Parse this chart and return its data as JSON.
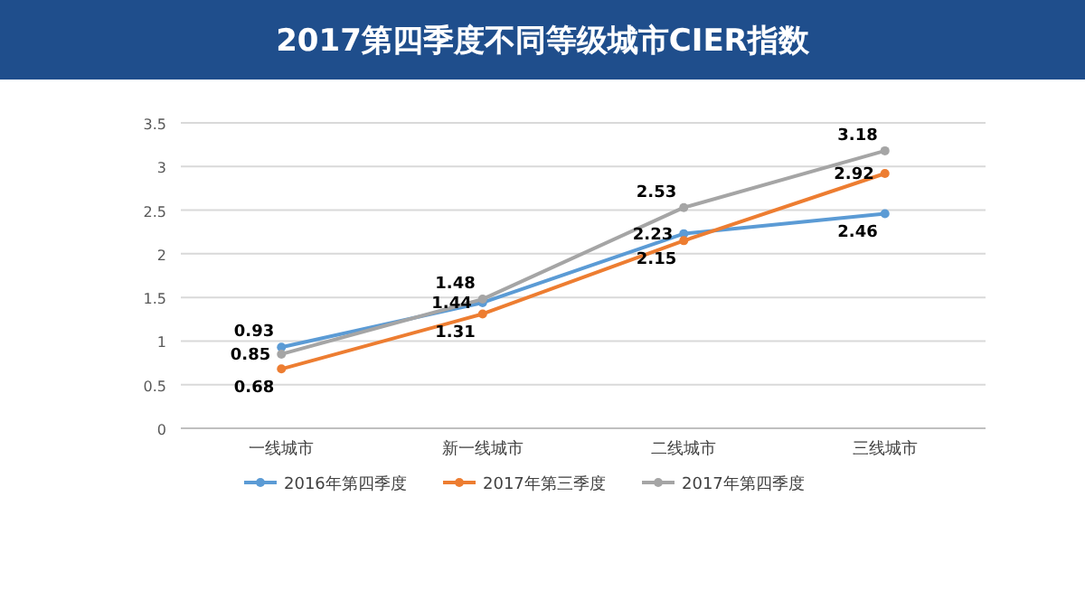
{
  "chart_data": {
    "type": "line",
    "title": "2017第四季度不同等级城市CIER指数",
    "categories": [
      "一线城市",
      "新一线城市",
      "二线城市",
      "三线城市"
    ],
    "series": [
      {
        "name": "2016年第四季度",
        "color": "#5b9bd5",
        "values": [
          0.93,
          1.44,
          2.23,
          2.46
        ]
      },
      {
        "name": "2017年第三季度",
        "color": "#ed7d31",
        "values": [
          0.68,
          1.31,
          2.15,
          2.92
        ]
      },
      {
        "name": "2017年第四季度",
        "color": "#a5a5a5",
        "values": [
          0.85,
          1.48,
          2.53,
          3.18
        ]
      }
    ],
    "ylim": [
      0,
      3.5
    ],
    "yticks": [
      0,
      0.5,
      1,
      1.5,
      2,
      2.5,
      3,
      3.5
    ],
    "grid": "y",
    "legend": "bottom",
    "marker": "circle",
    "line_style": "solid",
    "data_labels": true
  }
}
